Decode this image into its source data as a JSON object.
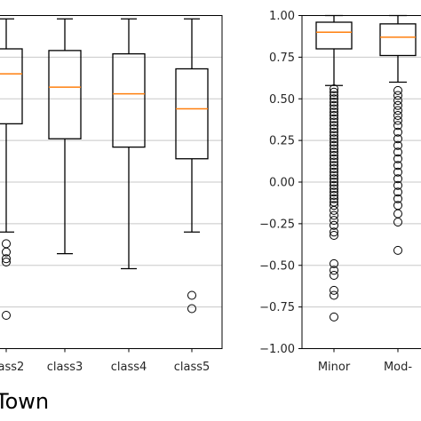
{
  "chart_data": [
    {
      "type": "box",
      "categories": [
        "class2",
        "class3",
        "class4",
        "class5"
      ],
      "ylim": [
        -1.0,
        1.0
      ],
      "grid": "y",
      "xlabel": "Town",
      "series": [
        {
          "category": "class2",
          "whislo": -0.3,
          "q1": 0.35,
          "med": 0.65,
          "q3": 0.8,
          "whishi": 0.98,
          "fliers": [
            -0.37,
            -0.42,
            -0.46,
            -0.48,
            -0.8
          ]
        },
        {
          "category": "class3",
          "whislo": -0.43,
          "q1": 0.26,
          "med": 0.57,
          "q3": 0.79,
          "whishi": 0.98,
          "fliers": []
        },
        {
          "category": "class4",
          "whislo": -0.52,
          "q1": 0.21,
          "med": 0.53,
          "q3": 0.77,
          "whishi": 0.98,
          "fliers": []
        },
        {
          "category": "class5",
          "whislo": -0.3,
          "q1": 0.14,
          "med": 0.44,
          "q3": 0.68,
          "whishi": 0.98,
          "fliers": [
            -0.68,
            -0.76
          ]
        }
      ],
      "colors": {
        "box": "#000000",
        "median": "#ff7f0e",
        "grid": "#c8c8c8"
      }
    },
    {
      "type": "box",
      "categories": [
        "Minor",
        "Mod-"
      ],
      "ylim": [
        -1.0,
        1.0
      ],
      "yticks": [
        "1.00",
        "0.75",
        "0.50",
        "0.25",
        "0.00",
        "−0.25",
        "−0.50",
        "−0.75",
        "−1.00"
      ],
      "grid": "y",
      "series": [
        {
          "category": "Minor",
          "whislo": 0.58,
          "q1": 0.8,
          "med": 0.9,
          "q3": 0.96,
          "whishi": 1.0,
          "fliers": [
            0.56,
            0.54,
            0.52,
            0.5,
            0.48,
            0.46,
            0.44,
            0.42,
            0.4,
            0.38,
            0.36,
            0.34,
            0.32,
            0.3,
            0.28,
            0.26,
            0.24,
            0.22,
            0.2,
            0.18,
            0.16,
            0.14,
            0.12,
            0.1,
            0.08,
            0.06,
            0.04,
            0.02,
            0.0,
            -0.02,
            -0.04,
            -0.06,
            -0.08,
            -0.1,
            -0.12,
            -0.14,
            -0.17,
            -0.2,
            -0.23,
            -0.26,
            -0.3,
            -0.32,
            -0.49,
            -0.53,
            -0.56,
            -0.65,
            -0.68,
            -0.81
          ]
        },
        {
          "category": "Mod-",
          "whislo": 0.6,
          "q1": 0.76,
          "med": 0.87,
          "q3": 0.95,
          "whishi": 1.0,
          "fliers": [
            0.55,
            0.52,
            0.49,
            0.46,
            0.43,
            0.4,
            0.37,
            0.34,
            0.3,
            0.26,
            0.22,
            0.18,
            0.14,
            0.1,
            0.06,
            0.02,
            -0.02,
            -0.06,
            -0.1,
            -0.14,
            -0.19,
            -0.24,
            -0.41
          ]
        }
      ],
      "colors": {
        "box": "#000000",
        "median": "#ff7f0e",
        "grid": "#c8c8c8"
      }
    }
  ]
}
